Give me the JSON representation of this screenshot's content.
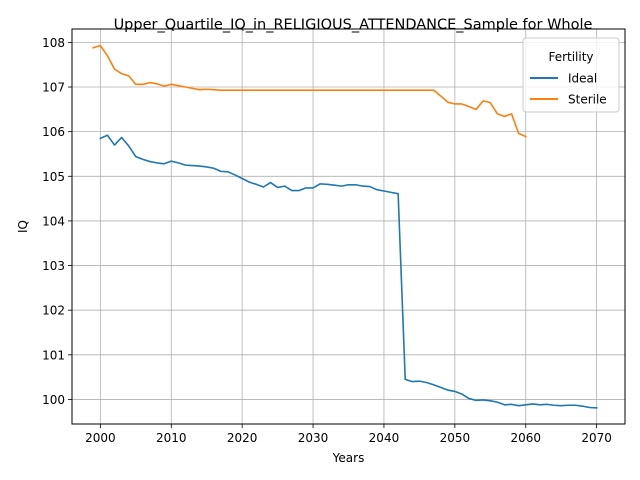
{
  "chart_data": {
    "type": "line",
    "title": "Upper_Quartile_IQ_in_RELIGIOUS_ATTENDANCE_Sample for Whole",
    "xlabel": "Years",
    "ylabel": "IQ",
    "xlim": [
      1996,
      2074
    ],
    "ylim": [
      99.45,
      108.3
    ],
    "xticks": [
      2000,
      2010,
      2020,
      2030,
      2040,
      2050,
      2060,
      2070
    ],
    "yticks": [
      100,
      101,
      102,
      103,
      104,
      105,
      106,
      107,
      108
    ],
    "grid": true,
    "legend": {
      "title": "Fertility",
      "position": "top-right"
    },
    "series": [
      {
        "name": "Ideal",
        "color": "#1f77b4",
        "x": [
          2000,
          2001,
          2002,
          2003,
          2004,
          2005,
          2006,
          2007,
          2008,
          2009,
          2010,
          2011,
          2012,
          2013,
          2014,
          2015,
          2016,
          2017,
          2018,
          2019,
          2020,
          2021,
          2022,
          2023,
          2024,
          2025,
          2026,
          2027,
          2028,
          2029,
          2030,
          2031,
          2032,
          2033,
          2034,
          2035,
          2036,
          2037,
          2038,
          2039,
          2040,
          2041,
          2042,
          2043,
          2044,
          2045,
          2046,
          2047,
          2048,
          2049,
          2050,
          2051,
          2052,
          2053,
          2054,
          2055,
          2056,
          2057,
          2058,
          2059,
          2060,
          2061,
          2062,
          2063,
          2064,
          2065,
          2066,
          2067,
          2068,
          2069,
          2070
        ],
        "y": [
          105.85,
          105.92,
          105.7,
          105.87,
          105.68,
          105.44,
          105.38,
          105.33,
          105.3,
          105.28,
          105.34,
          105.3,
          105.25,
          105.24,
          105.23,
          105.21,
          105.18,
          105.11,
          105.1,
          105.03,
          104.95,
          104.87,
          104.82,
          104.76,
          104.86,
          104.75,
          104.78,
          104.68,
          104.68,
          104.74,
          104.74,
          104.83,
          104.82,
          104.8,
          104.78,
          104.81,
          104.81,
          104.78,
          104.77,
          104.7,
          104.67,
          104.64,
          104.61,
          100.45,
          100.4,
          100.41,
          100.38,
          100.33,
          100.27,
          100.21,
          100.18,
          100.12,
          100.02,
          99.98,
          99.99,
          99.97,
          99.94,
          99.88,
          99.89,
          99.86,
          99.88,
          99.9,
          99.88,
          99.89,
          99.87,
          99.86,
          99.87,
          99.87,
          99.85,
          99.82,
          99.81
        ]
      },
      {
        "name": "Sterile",
        "color": "#ff7f0e",
        "x": [
          1999,
          2000,
          2001,
          2002,
          2003,
          2004,
          2005,
          2006,
          2007,
          2008,
          2009,
          2010,
          2011,
          2012,
          2013,
          2014,
          2015,
          2016,
          2017,
          2018,
          2019,
          2020,
          2021,
          2022,
          2023,
          2024,
          2025,
          2026,
          2027,
          2028,
          2029,
          2030,
          2031,
          2032,
          2033,
          2034,
          2035,
          2036,
          2037,
          2038,
          2039,
          2040,
          2041,
          2042,
          2043,
          2044,
          2045,
          2046,
          2047,
          2048,
          2049,
          2050,
          2051,
          2052,
          2053,
          2054,
          2055,
          2056,
          2057,
          2058,
          2059,
          2060
        ],
        "y": [
          107.88,
          107.93,
          107.7,
          107.4,
          107.3,
          107.25,
          107.06,
          107.06,
          107.1,
          107.07,
          107.02,
          107.06,
          107.03,
          107.0,
          106.97,
          106.94,
          106.95,
          106.94,
          106.93,
          106.93,
          106.93,
          106.93,
          106.93,
          106.93,
          106.93,
          106.93,
          106.93,
          106.93,
          106.93,
          106.93,
          106.93,
          106.93,
          106.93,
          106.93,
          106.93,
          106.93,
          106.93,
          106.93,
          106.93,
          106.93,
          106.93,
          106.93,
          106.93,
          106.93,
          106.93,
          106.93,
          106.93,
          106.93,
          106.93,
          106.8,
          106.66,
          106.62,
          106.62,
          106.56,
          106.5,
          106.69,
          106.65,
          106.4,
          106.34,
          106.4,
          105.96,
          105.89
        ]
      }
    ]
  }
}
